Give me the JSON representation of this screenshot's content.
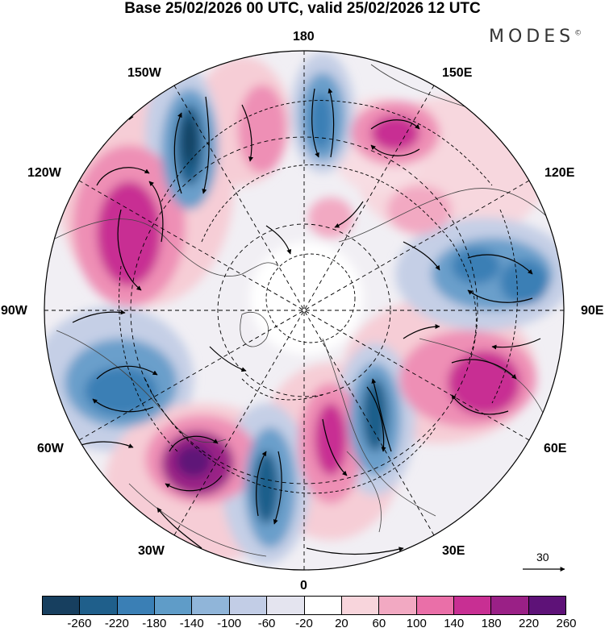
{
  "title": "Base 25/02/2026 00 UTC, valid 25/02/2026 12 UTC",
  "brand": "MODES",
  "brand_mark": "©",
  "longitude_labels": {
    "lon_180": "180",
    "lon_150e": "150E",
    "lon_120e": "120E",
    "lon_90e": "90E",
    "lon_60e": "60E",
    "lon_30e": "30E",
    "lon_0": "0",
    "lon_30w": "30W",
    "lon_60w": "60W",
    "lon_90w": "90W",
    "lon_120w": "120W",
    "lon_150w": "150W"
  },
  "reference_vector": "30",
  "colorbar": {
    "ticks": [
      "-260",
      "-220",
      "-180",
      "-140",
      "-100",
      "-60",
      "-20",
      "20",
      "60",
      "100",
      "140",
      "180",
      "220",
      "260"
    ],
    "colors": [
      "#173f5f",
      "#1f5f8b",
      "#3a7fb5",
      "#5f9cc8",
      "#90b5d9",
      "#c2cde6",
      "#e4e4ef",
      "#ffffff",
      "#f8d5dc",
      "#f2a9c2",
      "#ea6fa8",
      "#c82f93",
      "#9a2086",
      "#5e1278"
    ]
  }
}
